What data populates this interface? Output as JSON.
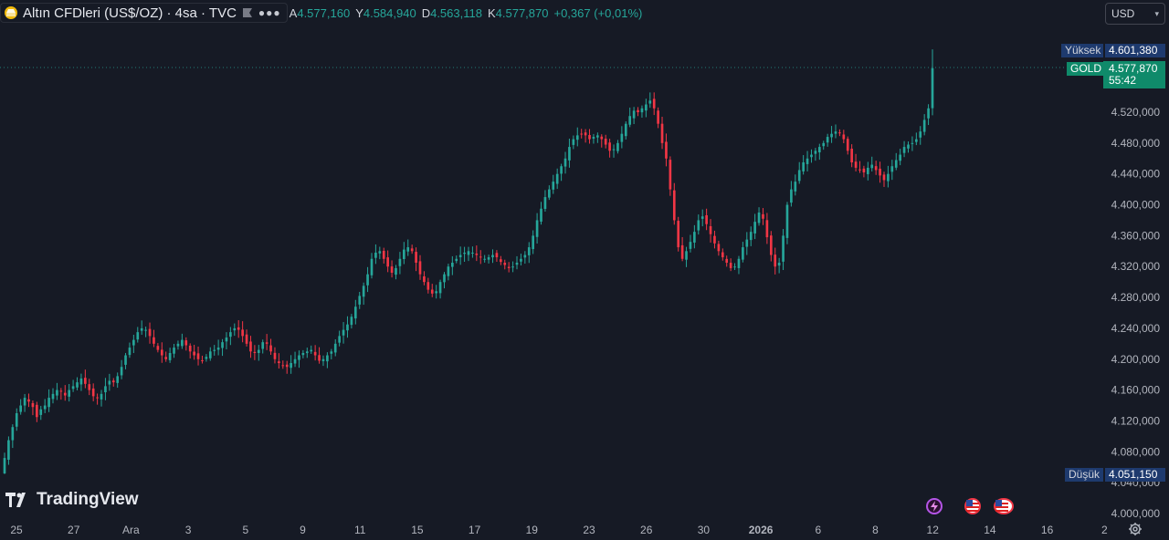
{
  "header": {
    "title": "Altın CFDleri (US$/OZ) · 4sa · TVC",
    "ohlc": [
      {
        "k": "A",
        "v": "4.577,160"
      },
      {
        "k": "Y",
        "v": "4.584,940"
      },
      {
        "k": "D",
        "v": "4.563,118"
      },
      {
        "k": "K",
        "v": "4.577,870"
      }
    ],
    "change": "+0,367 (+0,01%)"
  },
  "currency": {
    "label": "USD"
  },
  "price_labels": {
    "high_tag": "Yüksek",
    "high_value": "4.601,380",
    "symbol_tag": "GOLD",
    "last_value": "4.577,870",
    "countdown": "55:42",
    "low_tag": "Düşük",
    "low_value": "4.051,150"
  },
  "brand": {
    "name": "TradingView"
  },
  "colors": {
    "up": "#26a69a",
    "down": "#f23645",
    "bg": "#161a25",
    "grid": "#1f2330"
  },
  "chart_data": {
    "type": "candlestick",
    "ylim": [
      4000,
      4620
    ],
    "y_ticks": [
      "4.520,000",
      "4.480,000",
      "4.440,000",
      "4.400,000",
      "4.360,000",
      "4.320,000",
      "4.280,000",
      "4.240,000",
      "4.200,000",
      "4.160,000",
      "4.120,000",
      "4.080,000",
      "4.040,000",
      "4.000,000"
    ],
    "x_ticks": [
      "25",
      "27",
      "Ara",
      "3",
      "5",
      "9",
      "11",
      "15",
      "17",
      "19",
      "23",
      "26",
      "30",
      "2026",
      "6",
      "8",
      "12",
      "14",
      "16",
      "2"
    ],
    "last_price": 4577.87,
    "session_high": 4601.38,
    "session_low": 4051.15,
    "closes": [
      4072,
      4095,
      4112,
      4130,
      4140,
      4150,
      4145,
      4138,
      4125,
      4135,
      4140,
      4150,
      4155,
      4160,
      4158,
      4153,
      4160,
      4165,
      4170,
      4175,
      4168,
      4160,
      4152,
      4150,
      4155,
      4165,
      4172,
      4170,
      4178,
      4190,
      4205,
      4215,
      4225,
      4235,
      4240,
      4238,
      4230,
      4220,
      4212,
      4205,
      4200,
      4208,
      4215,
      4220,
      4225,
      4218,
      4210,
      4205,
      4200,
      4198,
      4203,
      4210,
      4212,
      4215,
      4222,
      4228,
      4235,
      4240,
      4238,
      4230,
      4220,
      4210,
      4208,
      4212,
      4222,
      4220,
      4210,
      4200,
      4195,
      4192,
      4190,
      4195,
      4200,
      4205,
      4208,
      4210,
      4212,
      4205,
      4198,
      4200,
      4205,
      4210,
      4220,
      4230,
      4238,
      4245,
      4255,
      4268,
      4282,
      4295,
      4310,
      4330,
      4338,
      4340,
      4330,
      4320,
      4312,
      4318,
      4330,
      4342,
      4345,
      4340,
      4325,
      4310,
      4300,
      4290,
      4285,
      4288,
      4300,
      4310,
      4320,
      4325,
      4330,
      4335,
      4338,
      4340,
      4338,
      4335,
      4332,
      4330,
      4332,
      4335,
      4332,
      4326,
      4322,
      4318,
      4320,
      4325,
      4330,
      4335,
      4345,
      4360,
      4380,
      4395,
      4410,
      4420,
      4430,
      4440,
      4450,
      4460,
      4475,
      4485,
      4490,
      4492,
      4490,
      4485,
      4488,
      4490,
      4485,
      4478,
      4470,
      4472,
      4480,
      4492,
      4505,
      4515,
      4522,
      4520,
      4525,
      4530,
      4535,
      4525,
      4505,
      4480,
      4460,
      4420,
      4380,
      4345,
      4330,
      4340,
      4352,
      4365,
      4380,
      4385,
      4375,
      4362,
      4350,
      4340,
      4332,
      4325,
      4318,
      4320,
      4330,
      4345,
      4355,
      4365,
      4378,
      4390,
      4382,
      4358,
      4335,
      4320,
      4325,
      4360,
      4400,
      4420,
      4430,
      4445,
      4455,
      4460,
      4465,
      4470,
      4475,
      4480,
      4488,
      4492,
      4495,
      4493,
      4485,
      4470,
      4455,
      4448,
      4445,
      4442,
      4448,
      4452,
      4445,
      4438,
      4432,
      4440,
      4450,
      4458,
      4465,
      4475,
      4478,
      4480,
      4485,
      4495,
      4510,
      4525,
      4577
    ]
  }
}
